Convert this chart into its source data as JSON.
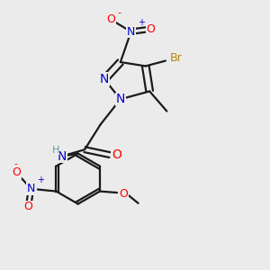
{
  "background_color": "#ebebeb",
  "atom_colors": {
    "C": "#000000",
    "H": "#5f9ea0",
    "N": "#0000cd",
    "O": "#ff0000",
    "Br": "#b8860b",
    "bond": "#1a1a1a"
  },
  "figsize": [
    3.0,
    3.0
  ],
  "dpi": 100
}
